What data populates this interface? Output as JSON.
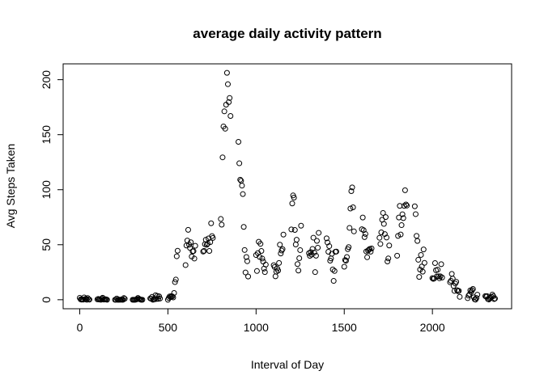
{
  "chart_data": {
    "type": "scatter",
    "title": "average daily activity pattern",
    "x_label": "Interval of Day",
    "y_label": "Avg Steps Taken",
    "x": [
      0,
      5,
      10,
      15,
      20,
      25,
      30,
      35,
      40,
      45,
      50,
      55,
      100,
      105,
      110,
      115,
      120,
      125,
      130,
      135,
      140,
      145,
      150,
      155,
      200,
      205,
      210,
      215,
      220,
      225,
      230,
      235,
      240,
      245,
      250,
      255,
      300,
      305,
      310,
      315,
      320,
      325,
      330,
      335,
      340,
      345,
      350,
      355,
      400,
      405,
      410,
      415,
      420,
      425,
      430,
      435,
      440,
      445,
      450,
      455,
      500,
      505,
      510,
      515,
      520,
      525,
      530,
      535,
      540,
      545,
      550,
      555,
      600,
      605,
      610,
      615,
      620,
      625,
      630,
      635,
      640,
      645,
      650,
      655,
      700,
      705,
      710,
      715,
      720,
      725,
      730,
      735,
      740,
      745,
      750,
      755,
      800,
      805,
      810,
      815,
      820,
      825,
      830,
      835,
      840,
      845,
      850,
      855,
      900,
      905,
      910,
      915,
      920,
      925,
      930,
      935,
      940,
      945,
      950,
      955,
      1000,
      1005,
      1010,
      1015,
      1020,
      1025,
      1030,
      1035,
      1040,
      1045,
      1050,
      1055,
      1100,
      1105,
      1110,
      1115,
      1120,
      1125,
      1130,
      1135,
      1140,
      1145,
      1150,
      1155,
      1200,
      1205,
      1210,
      1215,
      1220,
      1225,
      1230,
      1235,
      1240,
      1245,
      1250,
      1255,
      1300,
      1305,
      1310,
      1315,
      1320,
      1325,
      1330,
      1335,
      1340,
      1345,
      1350,
      1355,
      1400,
      1405,
      1410,
      1415,
      1420,
      1425,
      1430,
      1435,
      1440,
      1445,
      1450,
      1455,
      1500,
      1505,
      1510,
      1515,
      1520,
      1525,
      1530,
      1535,
      1540,
      1545,
      1550,
      1555,
      1600,
      1605,
      1610,
      1615,
      1620,
      1625,
      1630,
      1635,
      1640,
      1645,
      1650,
      1655,
      1700,
      1705,
      1710,
      1715,
      1720,
      1725,
      1730,
      1735,
      1740,
      1745,
      1750,
      1755,
      1800,
      1805,
      1810,
      1815,
      1820,
      1825,
      1830,
      1835,
      1840,
      1845,
      1850,
      1855,
      1900,
      1905,
      1910,
      1915,
      1920,
      1925,
      1930,
      1935,
      1940,
      1945,
      1950,
      1955,
      2000,
      2005,
      2010,
      2015,
      2020,
      2025,
      2030,
      2035,
      2040,
      2045,
      2050,
      2055,
      2100,
      2105,
      2110,
      2115,
      2120,
      2125,
      2130,
      2135,
      2140,
      2145,
      2150,
      2155,
      2200,
      2205,
      2210,
      2215,
      2220,
      2225,
      2230,
      2235,
      2240,
      2245,
      2250,
      2255,
      2300,
      2305,
      2310,
      2315,
      2320,
      2325,
      2330,
      2335,
      2340,
      2345,
      2350,
      2355
    ],
    "y": [
      1.7,
      0.3,
      0.1,
      0.2,
      0.1,
      2.1,
      0.5,
      0.9,
      0,
      1.5,
      0.3,
      0.1,
      0.3,
      0.7,
      0.2,
      0.3,
      0,
      1.1,
      1.8,
      0.2,
      0.2,
      0.4,
      0.3,
      0,
      0,
      0,
      1.1,
      0,
      0,
      0.1,
      0,
      0.2,
      0,
      0,
      1.5,
      0.9,
      0,
      0,
      0,
      0,
      0.2,
      0.6,
      1.6,
      0.7,
      0.5,
      0.1,
      0,
      0,
      1.2,
      0.9,
      2.6,
      0,
      0.3,
      0.4,
      4.1,
      0.7,
      3.5,
      0.8,
      3.1,
      1.1,
      0,
      1.6,
      3.0,
      2.3,
      3.3,
      3.0,
      2.1,
      6.1,
      16.0,
      18.3,
      39.5,
      44.5,
      31.5,
      49.3,
      53.8,
      63.5,
      50.0,
      47.1,
      52.2,
      39.3,
      44.0,
      44.2,
      37.4,
      49.0,
      43.8,
      44.4,
      50.5,
      54.5,
      49.9,
      50.9,
      55.7,
      44.3,
      52.3,
      69.5,
      57.8,
      56.2,
      73.4,
      68.2,
      129.4,
      157.5,
      171.2,
      155.4,
      177.3,
      206.2,
      195.9,
      179.6,
      183.4,
      167.0,
      143.5,
      124.0,
      109.1,
      108.1,
      103.7,
      96.0,
      66.2,
      45.2,
      24.8,
      38.8,
      35.0,
      21.1,
      40.6,
      26.1,
      42.4,
      52.7,
      38.9,
      50.8,
      44.3,
      37.4,
      34.7,
      28.3,
      25.1,
      31.9,
      31.4,
      29.7,
      21.3,
      25.5,
      28.4,
      26.5,
      33.4,
      50.0,
      42.0,
      44.7,
      46.0,
      59.2,
      63.9,
      87.5,
      94.8,
      92.8,
      63.4,
      50.2,
      54.5,
      32.4,
      26.5,
      37.7,
      45.1,
      67.3,
      42.3,
      39.9,
      43.3,
      41.0,
      46.2,
      56.4,
      42.8,
      25.1,
      40.0,
      53.5,
      47.3,
      60.8,
      55.8,
      52.0,
      43.6,
      48.7,
      35.5,
      37.5,
      41.8,
      27.5,
      17.1,
      26.1,
      43.6,
      43.8,
      30.0,
      36.1,
      35.5,
      38.8,
      46.0,
      47.8,
      65.3,
      82.9,
      98.7,
      102.1,
      84.0,
      62.1,
      64.1,
      74.7,
      63.2,
      56.9,
      59.8,
      43.9,
      38.6,
      44.7,
      45.5,
      46.2,
      43.7,
      46.6,
      56.3,
      50.7,
      61.2,
      72.7,
      78.9,
      68.9,
      59.7,
      75.1,
      56.5,
      34.8,
      37.5,
      49.3,
      40.0,
      58.0,
      74.7,
      85.3,
      59.3,
      67.8,
      77.7,
      74.2,
      85.3,
      99.5,
      86.6,
      85.6,
      84.9,
      77.8,
      58.0,
      53.4,
      36.3,
      20.7,
      27.4,
      40.7,
      30.2,
      25.5,
      45.7,
      33.5,
      19.6,
      19.0,
      19.3,
      33.3,
      26.8,
      21.2,
      27.3,
      21.3,
      19.5,
      21.3,
      32.3,
      20.2,
      15.9,
      17.2,
      23.5,
      19.2,
      12.5,
      8.0,
      14.7,
      16.3,
      8.7,
      7.8,
      8.1,
      2.6,
      1.4,
      3.7,
      4.8,
      8.5,
      7.1,
      8.7,
      9.8,
      2.2,
      0.3,
      0.1,
      1.6,
      4.6,
      3.3,
      2.8,
      3.3,
      0.6,
      0.2,
      1.1,
      1.8,
      2.6,
      4.7,
      3.3,
      0.6,
      1.1
    ],
    "color": "#000000",
    "xlim": [
      -94.2,
      2449.2
    ],
    "xticks": [
      0,
      500,
      1000,
      1500,
      2000
    ],
    "ylim": [
      -8.2,
      214.4
    ],
    "yticks": [
      0,
      50,
      100,
      150,
      200
    ]
  }
}
